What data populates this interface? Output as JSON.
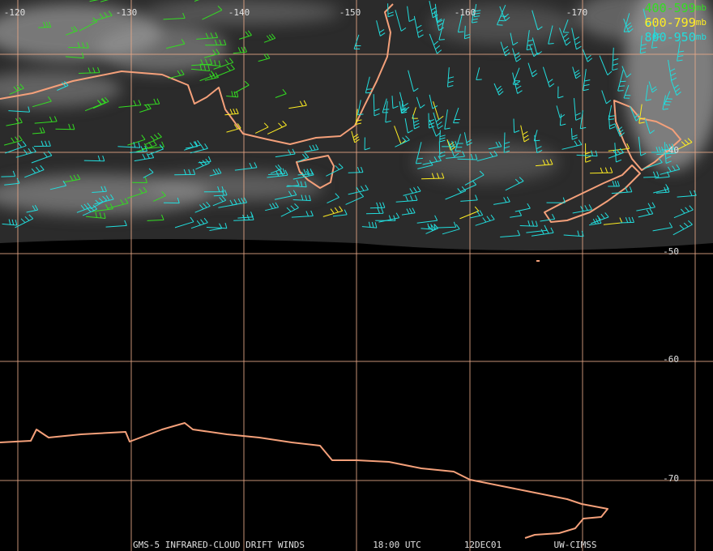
{
  "map": {
    "longitude_labels": [
      "-120",
      "-130",
      "-140",
      "-150",
      "-160",
      "-170"
    ],
    "latitude_labels": [
      "-40",
      "-50",
      "-60",
      "-70"
    ],
    "legend": [
      {
        "range": "400-599",
        "unit": "mb"
      },
      {
        "range": "600-799",
        "unit": "mb"
      },
      {
        "range": "800-950",
        "unit": "mb"
      }
    ],
    "footer": [
      "GMS-5 INFRARED-CLOUD DRIFT WINDS",
      "18:00 UTC",
      "12DEC01",
      "UW-CIMSS"
    ]
  }
}
